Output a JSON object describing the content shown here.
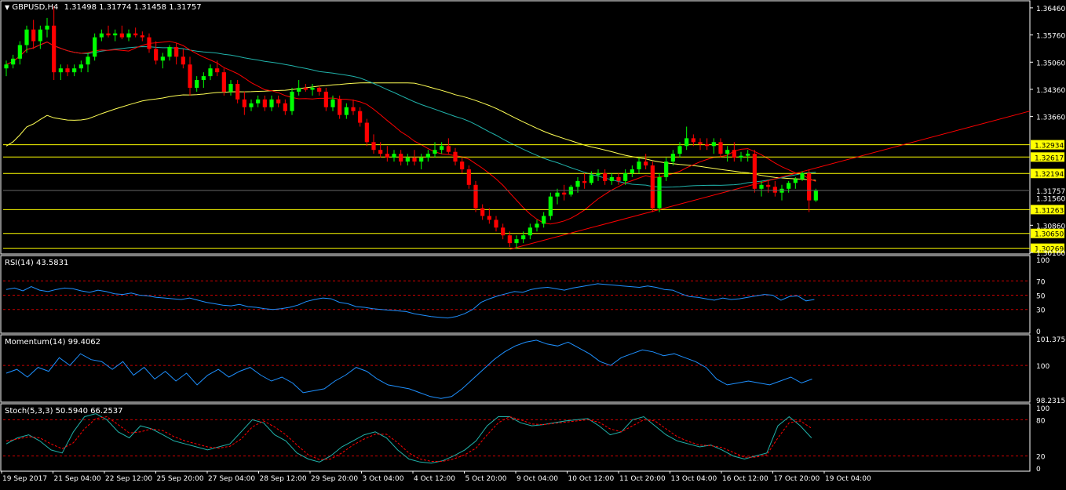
{
  "main": {
    "symbol_label": "GBPUSD,H4",
    "ohlc": "1.31498 1.31774 1.31458 1.31757",
    "price_ticks": [
      "1.36460",
      "1.35760",
      "1.35060",
      "1.34360",
      "1.33660",
      "1.30860",
      "1.30160"
    ],
    "horizontal_lines": [
      {
        "label": "1.32934",
        "value": 1.32934
      },
      {
        "label": "1.32617",
        "value": 1.32617
      },
      {
        "label": "1.32194",
        "value": 1.32194
      },
      {
        "label": "1.31263",
        "value": 1.31263
      },
      {
        "label": "1.30650",
        "value": 1.3065
      },
      {
        "label": "1.30269",
        "value": 1.30269
      }
    ],
    "current_price": "1.31757",
    "price_1": "1.31560",
    "trend_line": {
      "from": [
        1.3024,
        "5 Oct 20:00"
      ],
      "to": [
        1.338,
        "right edge"
      ]
    }
  },
  "rsi": {
    "title": "RSI(14) 43.5831",
    "ticks": [
      "100",
      "70",
      "50",
      "30",
      "0"
    ]
  },
  "momentum": {
    "title": "Momentum(14) 99.4062",
    "ticks": [
      "101.3756",
      "100",
      "98.2315"
    ]
  },
  "stoch": {
    "title": "Stoch(5,3,3) 50.5940 66.2537",
    "ticks": [
      "100",
      "80",
      "20",
      "0"
    ]
  },
  "time_axis": [
    "19 Sep 2017",
    "21 Sep 04:00",
    "22 Sep 12:00",
    "25 Sep 20:00",
    "27 Sep 04:00",
    "28 Sep 12:00",
    "29 Sep 20:00",
    "3 Oct 04:00",
    "4 Oct 12:00",
    "5 Oct 20:00",
    "9 Oct 04:00",
    "10 Oct 12:00",
    "11 Oct 20:00",
    "13 Oct 04:00",
    "16 Oct 12:00",
    "17 Oct 20:00",
    "19 Oct 04:00"
  ],
  "colors": {
    "bull": "#00ff00",
    "bear": "#ff0000",
    "ma_fast": "#ff0000",
    "ma_mid": "#20b2aa",
    "ma_slow": "#ffff55",
    "level": "#ffff00",
    "rsi": "#1e90ff",
    "momentum": "#1e90ff",
    "stoch_main": "#20b2aa",
    "stoch_signal": "#ff0000",
    "grid": "#ffffff"
  },
  "chart_data": [
    {
      "type": "candlestick",
      "title": "GBPUSD,H4",
      "ylim": [
        1.3016,
        1.366
      ],
      "ohlc": [
        [
          1.349,
          1.351,
          1.347,
          1.35
        ],
        [
          1.35,
          1.3525,
          1.349,
          1.3515
        ],
        [
          1.3515,
          1.356,
          1.35,
          1.355
        ],
        [
          1.355,
          1.36,
          1.353,
          1.359
        ],
        [
          1.359,
          1.3615,
          1.354,
          1.356
        ],
        [
          1.356,
          1.36,
          1.354,
          1.359
        ],
        [
          1.359,
          1.362,
          1.357,
          1.36
        ],
        [
          1.36,
          1.365,
          1.346,
          1.348
        ],
        [
          1.348,
          1.35,
          1.346,
          1.349
        ],
        [
          1.349,
          1.35,
          1.347,
          1.348
        ],
        [
          1.348,
          1.35,
          1.347,
          1.349
        ],
        [
          1.349,
          1.351,
          1.348,
          1.35
        ],
        [
          1.35,
          1.353,
          1.348,
          1.352
        ],
        [
          1.352,
          1.358,
          1.351,
          1.357
        ],
        [
          1.357,
          1.359,
          1.356,
          1.358
        ],
        [
          1.358,
          1.36,
          1.357,
          1.3575
        ],
        [
          1.3575,
          1.359,
          1.356,
          1.358
        ],
        [
          1.358,
          1.36,
          1.3565,
          1.357
        ],
        [
          1.357,
          1.359,
          1.356,
          1.358
        ],
        [
          1.358,
          1.3595,
          1.357,
          1.3575
        ],
        [
          1.3575,
          1.3585,
          1.356,
          1.357
        ],
        [
          1.357,
          1.358,
          1.353,
          1.354
        ],
        [
          1.354,
          1.356,
          1.35,
          1.351
        ],
        [
          1.351,
          1.353,
          1.349,
          1.352
        ],
        [
          1.352,
          1.355,
          1.351,
          1.3545
        ],
        [
          1.3545,
          1.3555,
          1.35,
          1.352
        ],
        [
          1.352,
          1.354,
          1.349,
          1.35
        ],
        [
          1.35,
          1.352,
          1.342,
          1.344
        ],
        [
          1.344,
          1.347,
          1.343,
          1.346
        ],
        [
          1.346,
          1.348,
          1.344,
          1.347
        ],
        [
          1.347,
          1.35,
          1.346,
          1.349
        ],
        [
          1.349,
          1.351,
          1.347,
          1.348
        ],
        [
          1.348,
          1.349,
          1.342,
          1.343
        ],
        [
          1.343,
          1.346,
          1.342,
          1.345
        ],
        [
          1.345,
          1.346,
          1.34,
          1.341
        ],
        [
          1.341,
          1.343,
          1.337,
          1.339
        ],
        [
          1.339,
          1.341,
          1.338,
          1.34
        ],
        [
          1.34,
          1.342,
          1.339,
          1.341
        ],
        [
          1.341,
          1.342,
          1.338,
          1.339
        ],
        [
          1.339,
          1.342,
          1.338,
          1.341
        ],
        [
          1.341,
          1.342,
          1.339,
          1.34
        ],
        [
          1.34,
          1.341,
          1.337,
          1.338
        ],
        [
          1.338,
          1.344,
          1.337,
          1.343
        ],
        [
          1.343,
          1.346,
          1.342,
          1.344
        ],
        [
          1.344,
          1.345,
          1.343,
          1.3435
        ],
        [
          1.3435,
          1.345,
          1.342,
          1.344
        ],
        [
          1.344,
          1.3445,
          1.342,
          1.343
        ],
        [
          1.343,
          1.344,
          1.338,
          1.339
        ],
        [
          1.339,
          1.342,
          1.338,
          1.341
        ],
        [
          1.341,
          1.342,
          1.336,
          1.337
        ],
        [
          1.337,
          1.34,
          1.336,
          1.339
        ],
        [
          1.339,
          1.341,
          1.337,
          1.338
        ],
        [
          1.338,
          1.339,
          1.334,
          1.335
        ],
        [
          1.335,
          1.336,
          1.329,
          1.33
        ],
        [
          1.33,
          1.332,
          1.327,
          1.328
        ],
        [
          1.328,
          1.33,
          1.326,
          1.327
        ],
        [
          1.327,
          1.329,
          1.325,
          1.326
        ],
        [
          1.326,
          1.328,
          1.325,
          1.327
        ],
        [
          1.327,
          1.328,
          1.324,
          1.325
        ],
        [
          1.325,
          1.327,
          1.324,
          1.326
        ],
        [
          1.326,
          1.328,
          1.324,
          1.325
        ],
        [
          1.325,
          1.327,
          1.323,
          1.326
        ],
        [
          1.326,
          1.328,
          1.325,
          1.327
        ],
        [
          1.327,
          1.33,
          1.326,
          1.328
        ],
        [
          1.328,
          1.33,
          1.327,
          1.329
        ],
        [
          1.329,
          1.331,
          1.327,
          1.3275
        ],
        [
          1.3275,
          1.3285,
          1.324,
          1.325
        ],
        [
          1.325,
          1.326,
          1.322,
          1.323
        ],
        [
          1.323,
          1.324,
          1.318,
          1.319
        ],
        [
          1.319,
          1.32,
          1.312,
          1.313
        ],
        [
          1.313,
          1.314,
          1.31,
          1.311
        ],
        [
          1.311,
          1.313,
          1.309,
          1.31
        ],
        [
          1.31,
          1.311,
          1.307,
          1.308
        ],
        [
          1.308,
          1.309,
          1.305,
          1.306
        ],
        [
          1.306,
          1.307,
          1.303,
          1.304
        ],
        [
          1.304,
          1.306,
          1.3025,
          1.305
        ],
        [
          1.305,
          1.307,
          1.304,
          1.306
        ],
        [
          1.306,
          1.309,
          1.305,
          1.308
        ],
        [
          1.308,
          1.31,
          1.307,
          1.309
        ],
        [
          1.309,
          1.312,
          1.308,
          1.311
        ],
        [
          1.311,
          1.317,
          1.31,
          1.316
        ],
        [
          1.316,
          1.318,
          1.314,
          1.317
        ],
        [
          1.317,
          1.319,
          1.315,
          1.3165
        ],
        [
          1.3165,
          1.319,
          1.316,
          1.3185
        ],
        [
          1.3185,
          1.321,
          1.317,
          1.32
        ],
        [
          1.32,
          1.322,
          1.318,
          1.3195
        ],
        [
          1.3195,
          1.3225,
          1.319,
          1.3215
        ],
        [
          1.3215,
          1.323,
          1.32,
          1.322
        ],
        [
          1.322,
          1.323,
          1.319,
          1.32
        ],
        [
          1.32,
          1.322,
          1.319,
          1.321
        ],
        [
          1.321,
          1.322,
          1.319,
          1.32
        ],
        [
          1.32,
          1.323,
          1.319,
          1.322
        ],
        [
          1.322,
          1.324,
          1.321,
          1.323
        ],
        [
          1.323,
          1.326,
          1.322,
          1.325
        ],
        [
          1.325,
          1.327,
          1.323,
          1.324
        ],
        [
          1.324,
          1.325,
          1.312,
          1.313
        ],
        [
          1.313,
          1.322,
          1.312,
          1.321
        ],
        [
          1.321,
          1.326,
          1.32,
          1.325
        ],
        [
          1.325,
          1.328,
          1.324,
          1.327
        ],
        [
          1.327,
          1.33,
          1.326,
          1.329
        ],
        [
          1.329,
          1.334,
          1.328,
          1.331
        ],
        [
          1.331,
          1.332,
          1.329,
          1.33
        ],
        [
          1.33,
          1.331,
          1.328,
          1.3295
        ],
        [
          1.3295,
          1.331,
          1.328,
          1.329
        ],
        [
          1.329,
          1.331,
          1.327,
          1.33
        ],
        [
          1.33,
          1.331,
          1.326,
          1.327
        ],
        [
          1.327,
          1.329,
          1.325,
          1.328
        ],
        [
          1.328,
          1.33,
          1.325,
          1.326
        ],
        [
          1.326,
          1.3275,
          1.325,
          1.3265
        ],
        [
          1.3265,
          1.328,
          1.325,
          1.327
        ],
        [
          1.327,
          1.328,
          1.317,
          1.318
        ],
        [
          1.318,
          1.32,
          1.316,
          1.319
        ],
        [
          1.319,
          1.32,
          1.317,
          1.3185
        ],
        [
          1.3185,
          1.32,
          1.316,
          1.317
        ],
        [
          1.317,
          1.319,
          1.315,
          1.318
        ],
        [
          1.318,
          1.32,
          1.317,
          1.3195
        ],
        [
          1.3195,
          1.321,
          1.318,
          1.3205
        ],
        [
          1.3205,
          1.3225,
          1.32,
          1.322
        ],
        [
          1.322,
          1.323,
          1.312,
          1.315
        ],
        [
          1.315,
          1.318,
          1.3146,
          1.3176
        ]
      ]
    },
    {
      "type": "line",
      "title": "RSI(14) 43.5831",
      "ylim": [
        0,
        100
      ],
      "values": [
        58,
        60,
        56,
        62,
        57,
        55,
        58,
        60,
        59,
        56,
        54,
        57,
        55,
        52,
        51,
        53,
        50,
        49,
        47,
        46,
        45,
        44,
        46,
        43,
        40,
        38,
        36,
        35,
        37,
        34,
        33,
        31,
        30,
        31,
        33,
        36,
        41,
        44,
        46,
        45,
        40,
        38,
        34,
        33,
        31,
        30,
        29,
        28,
        27,
        24,
        22,
        20,
        19,
        18,
        20,
        24,
        30,
        40,
        45,
        49,
        52,
        55,
        54,
        58,
        60,
        61,
        59,
        57,
        60,
        62,
        64,
        66,
        65,
        64,
        63,
        62,
        61,
        63,
        61,
        58,
        57,
        52,
        48,
        47,
        45,
        43,
        46,
        44,
        45,
        47,
        49,
        51,
        50,
        43,
        48,
        49,
        42,
        44
      ]
    },
    {
      "type": "line",
      "title": "Momentum(14) 99.4062",
      "ylim": [
        98.2315,
        101.3756
      ],
      "values": [
        99.6,
        99.8,
        99.4,
        99.9,
        99.7,
        100.4,
        100.0,
        100.6,
        100.3,
        100.2,
        99.8,
        100.2,
        99.5,
        99.9,
        99.3,
        99.7,
        99.2,
        99.6,
        99.0,
        99.5,
        99.8,
        99.4,
        99.7,
        99.9,
        99.5,
        99.2,
        99.4,
        99.1,
        98.6,
        98.7,
        98.8,
        99.2,
        99.5,
        99.9,
        99.7,
        99.3,
        99.0,
        98.9,
        98.8,
        98.6,
        98.4,
        98.3,
        98.4,
        98.8,
        99.3,
        99.8,
        100.3,
        100.7,
        101.0,
        101.2,
        101.3,
        101.1,
        101.0,
        101.2,
        100.9,
        100.6,
        100.2,
        100.0,
        100.4,
        100.6,
        100.8,
        100.7,
        100.5,
        100.6,
        100.4,
        100.2,
        99.9,
        99.3,
        99.0,
        99.1,
        99.2,
        99.1,
        99.0,
        99.2,
        99.4,
        99.1,
        99.3
      ]
    },
    {
      "type": "line",
      "title": "Stoch(5,3,3) 50.5940 66.2537",
      "ylim": [
        0,
        100
      ],
      "series": [
        {
          "values": [
            40,
            50,
            55,
            45,
            30,
            25,
            60,
            85,
            90,
            80,
            60,
            50,
            70,
            65,
            55,
            45,
            40,
            35,
            30,
            35,
            40,
            60,
            80,
            75,
            55,
            45,
            25,
            15,
            10,
            20,
            35,
            45,
            55,
            60,
            50,
            30,
            15,
            10,
            8,
            12,
            20,
            30,
            45,
            70,
            85,
            85,
            75,
            70,
            72,
            75,
            78,
            80,
            82,
            70,
            55,
            60,
            80,
            85,
            70,
            55,
            45,
            40,
            35,
            38,
            30,
            20,
            15,
            20,
            25,
            70,
            85,
            70,
            50
          ]
        },
        {
          "values": [
            45,
            48,
            52,
            50,
            40,
            32,
            42,
            65,
            82,
            85,
            72,
            58,
            60,
            65,
            62,
            52,
            45,
            40,
            35,
            33,
            36,
            48,
            68,
            78,
            68,
            55,
            38,
            22,
            14,
            15,
            25,
            38,
            48,
            56,
            56,
            42,
            25,
            15,
            11,
            11,
            15,
            22,
            33,
            55,
            75,
            85,
            80,
            73,
            72,
            74,
            76,
            78,
            80,
            76,
            65,
            60,
            70,
            80,
            78,
            65,
            52,
            44,
            38,
            37,
            34,
            26,
            18,
            18,
            22,
            50,
            75,
            78,
            66
          ]
        }
      ]
    }
  ]
}
